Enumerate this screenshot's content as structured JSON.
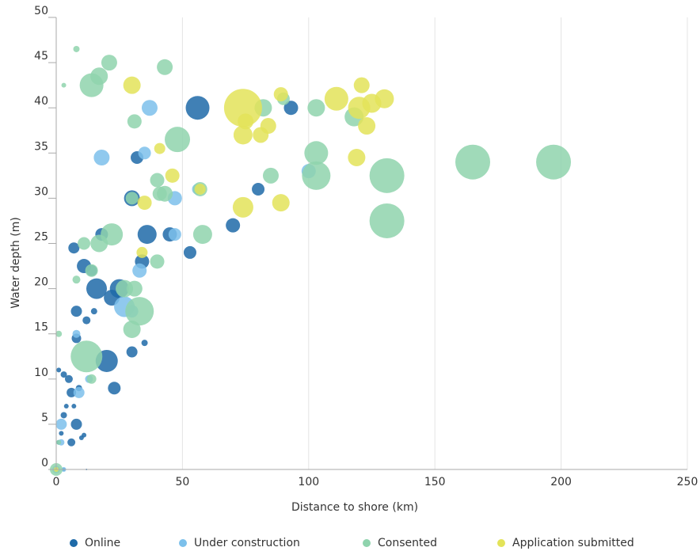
{
  "chart_data": {
    "type": "scatter",
    "title": "",
    "xlabel": "Distance to shore (km)",
    "ylabel": "Water depth (m)",
    "xlim": [
      0,
      250
    ],
    "ylim": [
      0,
      50
    ],
    "xticks": [
      0,
      50,
      100,
      150,
      200,
      250
    ],
    "yticks": [
      0,
      5,
      10,
      15,
      20,
      25,
      30,
      35,
      40,
      45,
      50
    ],
    "grid": "vertical",
    "legend_position": "bottom",
    "series": [
      {
        "name": "Online",
        "color": "#1e6aa8",
        "points": [
          [
            56,
            40,
            15
          ],
          [
            93,
            40,
            9
          ],
          [
            32,
            34.5,
            8
          ],
          [
            36,
            26,
            12
          ],
          [
            45,
            26,
            9
          ],
          [
            53,
            24,
            8
          ],
          [
            70,
            27,
            9
          ],
          [
            80,
            31,
            8
          ],
          [
            30,
            30,
            10
          ],
          [
            34,
            23,
            9
          ],
          [
            25,
            20,
            12
          ],
          [
            22,
            19,
            10
          ],
          [
            16,
            20,
            13
          ],
          [
            11,
            22.5,
            9
          ],
          [
            7,
            24.5,
            7
          ],
          [
            18,
            26,
            8
          ],
          [
            14,
            22,
            7
          ],
          [
            8,
            17.5,
            7
          ],
          [
            12,
            16.5,
            5
          ],
          [
            15,
            17.5,
            4
          ],
          [
            20,
            12,
            14
          ],
          [
            23,
            9,
            8
          ],
          [
            30,
            13,
            7
          ],
          [
            8,
            14.5,
            6
          ],
          [
            3,
            10.5,
            4
          ],
          [
            5,
            10,
            5
          ],
          [
            6,
            8.5,
            6
          ],
          [
            9,
            9,
            4
          ],
          [
            8,
            5,
            7
          ],
          [
            10,
            3.5,
            3
          ],
          [
            6,
            3,
            5
          ],
          [
            2,
            4,
            3
          ],
          [
            1,
            3,
            3
          ],
          [
            3,
            6,
            4
          ],
          [
            4,
            7,
            3
          ],
          [
            7,
            7,
            3
          ],
          [
            1,
            11,
            3
          ],
          [
            35,
            14,
            4
          ],
          [
            11,
            3.8,
            3
          ],
          [
            12,
            0,
            1
          ],
          [
            3,
            0,
            2
          ],
          [
            0,
            0,
            2
          ]
        ]
      },
      {
        "name": "Under construction",
        "color": "#7cc0eb",
        "points": [
          [
            37,
            40,
            10
          ],
          [
            18,
            34.5,
            10
          ],
          [
            35,
            35,
            8
          ],
          [
            47,
            30,
            9
          ],
          [
            47,
            26,
            8
          ],
          [
            56,
            31,
            7
          ],
          [
            100,
            33,
            9
          ],
          [
            33,
            22,
            9
          ],
          [
            27,
            18,
            13
          ],
          [
            30,
            17.5,
            8
          ],
          [
            9,
            8.5,
            7
          ],
          [
            2,
            5,
            7
          ],
          [
            2,
            3,
            4
          ],
          [
            0,
            0,
            5
          ],
          [
            3,
            0,
            3
          ],
          [
            8,
            15,
            5
          ],
          [
            13,
            10,
            5
          ]
        ]
      },
      {
        "name": "Consented",
        "color": "#8fd3ad",
        "points": [
          [
            21,
            45,
            10
          ],
          [
            43,
            44.5,
            10
          ],
          [
            8,
            46.5,
            4
          ],
          [
            3,
            42.5,
            3
          ],
          [
            14,
            42.5,
            15
          ],
          [
            17,
            43.5,
            11
          ],
          [
            31,
            38.5,
            9
          ],
          [
            48,
            36.5,
            16
          ],
          [
            40,
            32,
            9
          ],
          [
            43,
            30.5,
            10
          ],
          [
            30,
            30,
            8
          ],
          [
            57,
            31,
            9
          ],
          [
            58,
            26,
            12
          ],
          [
            82,
            40,
            11
          ],
          [
            85,
            32.5,
            10
          ],
          [
            90,
            41,
            8
          ],
          [
            103,
            40,
            11
          ],
          [
            103,
            35,
            15
          ],
          [
            103,
            32.5,
            18
          ],
          [
            118,
            39,
            12
          ],
          [
            131,
            32.5,
            22
          ],
          [
            131,
            27.5,
            22
          ],
          [
            165,
            34,
            22
          ],
          [
            197,
            34,
            22
          ],
          [
            22,
            26,
            14
          ],
          [
            17,
            25,
            11
          ],
          [
            11,
            25,
            8
          ],
          [
            14,
            22,
            8
          ],
          [
            27,
            20,
            11
          ],
          [
            31,
            20,
            10
          ],
          [
            33,
            17.5,
            18
          ],
          [
            30,
            15.5,
            11
          ],
          [
            40,
            23,
            9
          ],
          [
            12,
            12.5,
            20
          ],
          [
            8,
            21,
            5
          ],
          [
            1,
            15,
            4
          ],
          [
            14,
            10,
            6
          ],
          [
            0,
            0,
            8
          ],
          [
            1,
            3,
            3
          ],
          [
            41,
            30.5,
            9
          ]
        ]
      },
      {
        "name": "Application submitted",
        "color": "#e3e359",
        "points": [
          [
            30,
            42.5,
            11
          ],
          [
            74,
            40,
            24
          ],
          [
            74,
            37,
            12
          ],
          [
            75,
            38.5,
            10
          ],
          [
            81,
            37,
            10
          ],
          [
            84,
            38,
            10
          ],
          [
            89,
            41.5,
            9
          ],
          [
            111,
            41,
            15
          ],
          [
            121,
            42.5,
            10
          ],
          [
            120,
            40,
            14
          ],
          [
            125,
            40.5,
            12
          ],
          [
            130,
            41,
            12
          ],
          [
            123,
            38,
            11
          ],
          [
            119,
            34.5,
            11
          ],
          [
            89,
            29.5,
            11
          ],
          [
            74,
            29,
            13
          ],
          [
            46,
            32.5,
            9
          ],
          [
            41,
            35.5,
            7
          ],
          [
            35,
            29.5,
            9
          ],
          [
            34,
            24,
            7
          ],
          [
            57,
            31,
            7
          ],
          [
            0,
            0,
            3
          ]
        ]
      }
    ]
  },
  "legend": {
    "items": [
      {
        "label": "Online",
        "color": "#1e6aa8"
      },
      {
        "label": "Under construction",
        "color": "#7cc0eb"
      },
      {
        "label": "Consented",
        "color": "#8fd3ad"
      },
      {
        "label": "Application submitted",
        "color": "#e3e359"
      }
    ]
  }
}
